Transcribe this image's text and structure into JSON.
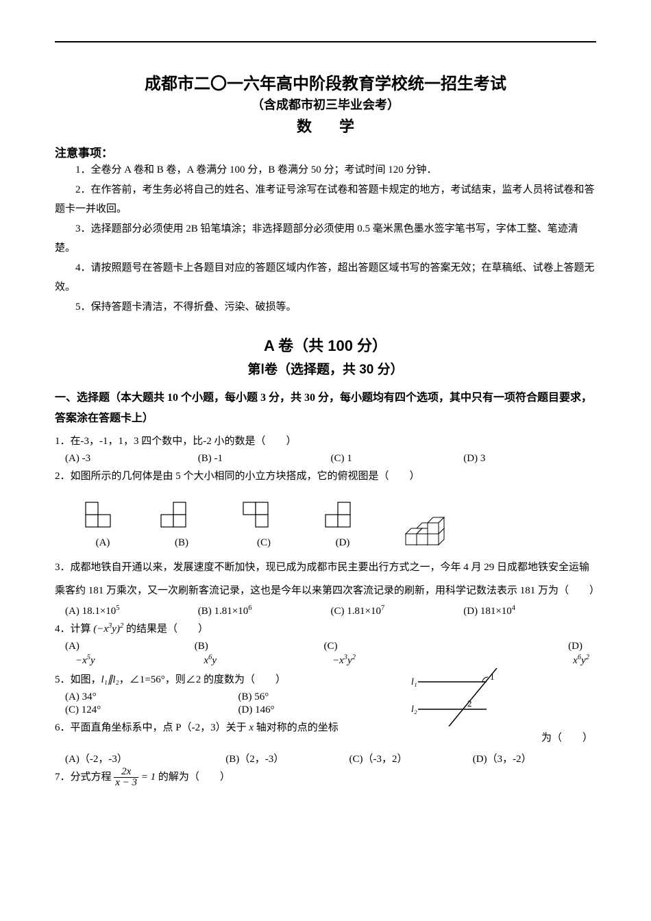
{
  "header": {
    "title_main": "成都市二〇一六年高中阶段教育学校统一招生考试",
    "title_sub": "（含成都市初三毕业会考）",
    "subject": "数学"
  },
  "notice": {
    "heading": "注意事项：",
    "items": [
      "1．全卷分 A 卷和 B 卷，A 卷满分 100 分，B 卷满分 50 分；考试时间 120 分钟．",
      "2．在作答前，考生务必将自己的姓名、准考证号涂写在试卷和答题卡规定的地方，考试结束，监考人员将试卷和答题卡一并收回。",
      "3．选择题部分必须使用 2B 铅笔填涂；非选择题部分必须使用 0.5 毫米黑色墨水签字笔书写，字体工整、笔迹清楚。",
      "4．请按照题号在答题卡上各题目对应的答题区域内作答，超出答题区域书写的答案无效；在草稿纸、试卷上答题无效。",
      "5．保持答题卡清洁，不得折叠、污染、破损等。"
    ]
  },
  "section_a": {
    "heading": "A 卷（共 100 分）",
    "sub": "第Ⅰ卷（选择题，共 30 分）"
  },
  "part1": {
    "heading": "一、选择题（本大题共 10 个小题，每小题 3 分，共 30 分，每小题均有四个选项，其中只有一项符合题目要求，答案涂在答题卡上）"
  },
  "q1": {
    "text": "1．在-3，-1，1，3 四个数中，比-2 小的数是（　　）",
    "a": "(A) -3",
    "b": "(B) -1",
    "c": "(C) 1",
    "d": "(D) 3"
  },
  "q2": {
    "text": "2．如图所示的几何体是由 5 个大小相同的小立方块搭成，它的俯视图是（　　）",
    "labels": {
      "a": "(A)",
      "b": "(B)",
      "c": "(C)",
      "d": "(D)"
    },
    "cell": 18,
    "stroke": "#000000",
    "fill": "#ffffff"
  },
  "q3": {
    "text": "3．成都地铁自开通以来，发展速度不断加快，现已成为成都市民主要出行方式之一，今年 4 月 29 日成都地铁安全运输乘客约 181 万乘次，又一次刷新客流记录，这也是今年以来第四次客流记录的刷新，用科学记数法表示 181 万为（　　）",
    "a_pre": "(A) 18.1×10",
    "a_exp": "5",
    "b_pre": "(B) 1.81×10",
    "b_exp": "6",
    "c_pre": "(C) 1.81×10",
    "c_exp": "7",
    "d_pre": "(D) 181×10",
    "d_exp": "4"
  },
  "q4": {
    "text_pre": "4．计算",
    "text_post": "的结果是（　　）",
    "expr_base_l": "(−x",
    "expr_base_exp1": "3",
    "expr_base_mid": "y)",
    "expr_exp": "2",
    "a_label": "(A)",
    "b_label": "(B)",
    "c_label": "(C)",
    "d_label": "(D)",
    "a_pre": "−x",
    "a_e1": "5",
    "a_mid": "y",
    "b_pre": "x",
    "b_e1": "6",
    "b_mid": "y",
    "c_pre": "−x",
    "c_e1": "3",
    "c_mid": "y",
    "c_e2": "2",
    "d_pre": "x",
    "d_e1": "6",
    "d_mid": "y",
    "d_e2": "2"
  },
  "q5": {
    "text_pre": "5．如图，",
    "l1": "l₁∥l₂",
    "text_mid": "，∠1=56°，则∠2 的度数为（　　）",
    "a": "(A) 34°",
    "b": "(B) 56°",
    "c": "(C) 124°",
    "d": "(D) 146°",
    "fig": {
      "l1_label": "l₁",
      "l2_label": "l₂",
      "angle1": "1",
      "angle2": "2"
    }
  },
  "q6": {
    "text_pre": "6．平面直角坐标系中，点 P（-2，3）关于 ",
    "axis": "x",
    "text_post": " 轴对称的点的坐标",
    "tail": "为（　　）",
    "a": "(A)（-2，-3）",
    "b": "(B)（2，-3）",
    "c": "(C)（-3，2）",
    "d": "(D)（3，-2）"
  },
  "q7": {
    "text_pre": "7．分式方程",
    "frac_num": "2x",
    "frac_den": "x − 3",
    "eq": " = 1",
    "text_post": "的解为（　　）"
  }
}
